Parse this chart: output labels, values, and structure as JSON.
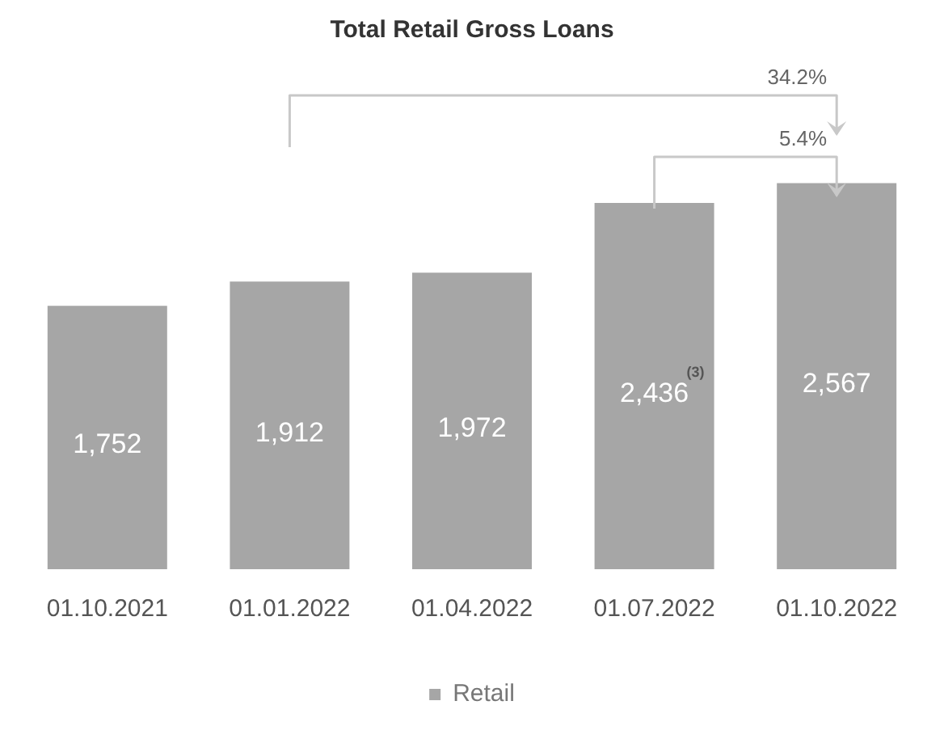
{
  "chart_data": {
    "type": "bar",
    "title": "Total Retail Gross Loans",
    "categories": [
      "01.10.2021",
      "01.01.2022",
      "01.04.2022",
      "01.07.2022",
      "01.10.2022"
    ],
    "series": [
      {
        "name": "Retail",
        "color": "#a6a6a6",
        "values": [
          1752,
          1912,
          1972,
          2436,
          2567
        ],
        "value_labels": [
          "1,752",
          "1,912",
          "1,972",
          "2,436",
          "2,567"
        ]
      }
    ],
    "grid": false,
    "legend": "bottom",
    "annotations": [
      "34.2%",
      "5.4%",
      "(3)"
    ]
  }
}
